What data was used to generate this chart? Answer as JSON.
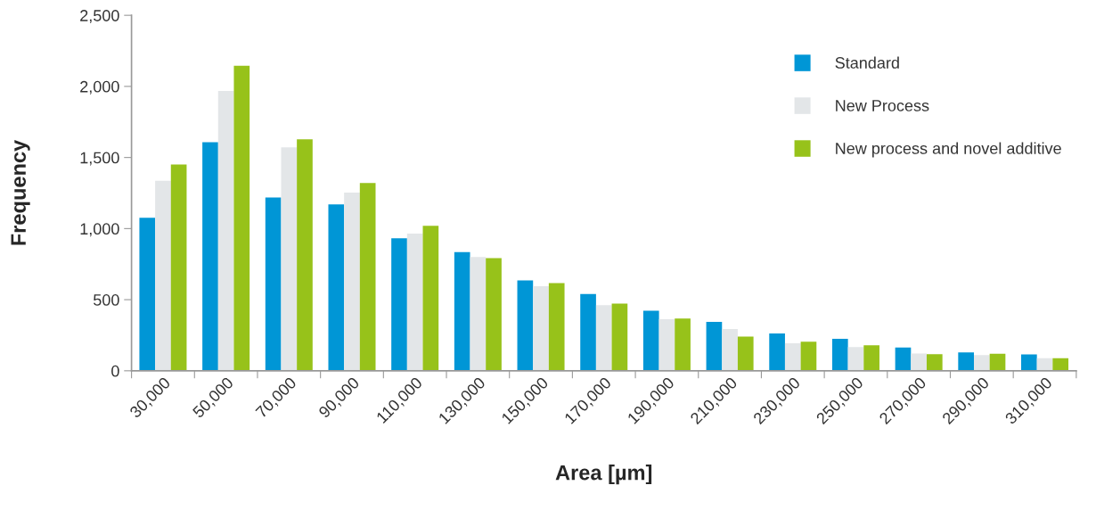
{
  "chart_data": {
    "type": "bar",
    "xlabel": "Area [µm]",
    "ylabel": "Frequency",
    "categories": [
      "30,000",
      "50,000",
      "70,000",
      "90,000",
      "110,000",
      "130,000",
      "150,000",
      "170,000",
      "190,000",
      "210,000",
      "230,000",
      "250,000",
      "270,000",
      "290,000",
      "310,000"
    ],
    "series": [
      {
        "name": "Standard",
        "color": "#0096d6",
        "values": [
          1076,
          1608,
          1218,
          1170,
          932,
          834,
          636,
          540,
          423,
          344,
          263,
          225,
          163,
          129,
          115
        ]
      },
      {
        "name": "New Process",
        "color": "#e3e6e8",
        "values": [
          1336,
          1968,
          1572,
          1253,
          965,
          800,
          594,
          461,
          363,
          294,
          194,
          167,
          121,
          110,
          88
        ]
      },
      {
        "name": "New process and novel additive",
        "color": "#97c21a",
        "values": [
          1451,
          2145,
          1628,
          1320,
          1020,
          792,
          617,
          473,
          367,
          240,
          204,
          179,
          117,
          119,
          88
        ]
      }
    ],
    "ylim": [
      0,
      2500
    ],
    "yticks": [
      {
        "value": 0,
        "label": "0"
      },
      {
        "value": 500,
        "label": "500"
      },
      {
        "value": 1000,
        "label": "1,000"
      },
      {
        "value": 1500,
        "label": "1,500"
      },
      {
        "value": 2000,
        "label": "2,000"
      },
      {
        "value": 2500,
        "label": "2,500"
      }
    ],
    "legend": "top right"
  }
}
